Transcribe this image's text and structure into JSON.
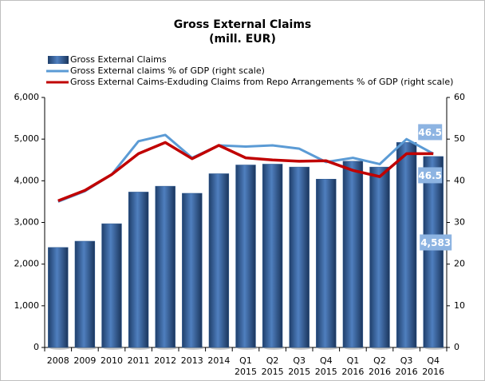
{
  "chart_data": {
    "type": "bar_line",
    "title": "Gross External Claims",
    "subtitle": "(mill. EUR)",
    "categories": [
      "2008",
      "2009",
      "2010",
      "2011",
      "2012",
      "2013",
      "2014",
      "Q1 2015",
      "Q2 2015",
      "Q3 2015",
      "Q4 2015",
      "Q1 2016",
      "Q2 2016",
      "Q3 2016",
      "Q4 2016"
    ],
    "series": [
      {
        "name": "Gross External Claims",
        "type": "bar",
        "color": "#2e5a92",
        "values": [
          2400,
          2550,
          2970,
          3730,
          3870,
          3700,
          4170,
          4380,
          4400,
          4330,
          4040,
          4470,
          4330,
          4920,
          4583
        ],
        "value_labels": [
          null,
          null,
          null,
          null,
          null,
          null,
          null,
          null,
          null,
          null,
          null,
          null,
          null,
          null,
          "4,583"
        ]
      },
      {
        "name": "Gross External claims % of GDP (right scale)",
        "type": "line",
        "axis": "y2",
        "color": "#5b9bd5",
        "values": [
          35,
          37.5,
          41.5,
          49.5,
          51,
          45.5,
          48.5,
          48.2,
          48.5,
          47.7,
          44.5,
          45.5,
          44,
          50,
          46.5
        ],
        "value_labels": [
          null,
          null,
          null,
          null,
          null,
          null,
          null,
          null,
          null,
          null,
          null,
          null,
          null,
          null,
          "46.5"
        ]
      },
      {
        "name": "Gross External Caims-Exduding Claims from Repo Arrangements % of GDP (right scale)",
        "type": "line",
        "axis": "y2",
        "color": "#c00000",
        "values": [
          35.2,
          37.7,
          41.5,
          46.5,
          49.2,
          45.3,
          48.5,
          45.5,
          45,
          44.7,
          44.8,
          42.5,
          41,
          46.5,
          46.5
        ],
        "value_labels": [
          null,
          null,
          null,
          null,
          null,
          null,
          null,
          null,
          null,
          null,
          null,
          null,
          null,
          null,
          "46.5"
        ]
      }
    ],
    "ylim": [
      0,
      6000
    ],
    "yticks": [
      0,
      {
        "value": 1000,
        "label": "1,000"
      },
      {
        "value": 2000,
        "label": "2,000"
      },
      {
        "value": 3000,
        "label": "3,000"
      },
      {
        "value": 4000,
        "label": "4,000"
      },
      {
        "value": 5000,
        "label": "5,000"
      },
      {
        "value": 6000,
        "label": "6,000"
      }
    ],
    "y2lim": [
      0,
      60
    ],
    "y2ticks": [
      0,
      10,
      20,
      30,
      40,
      50,
      60
    ],
    "legend": "top-left"
  }
}
